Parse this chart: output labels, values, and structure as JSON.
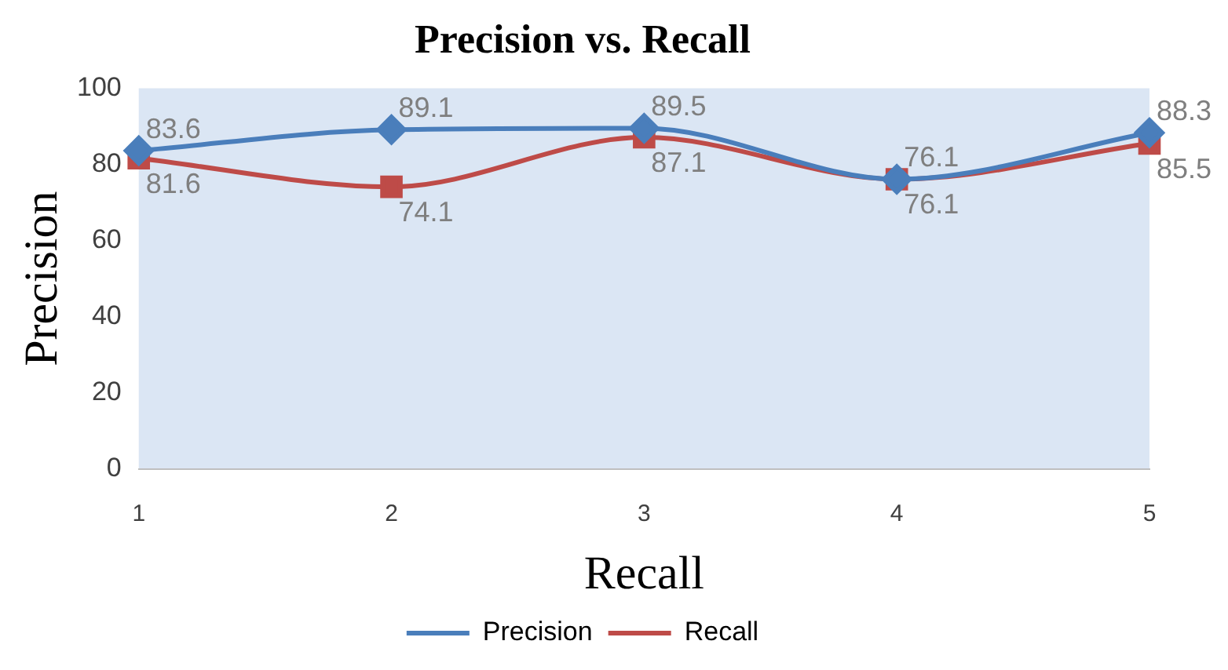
{
  "chart_data": {
    "type": "line",
    "title": "Precision vs. Recall",
    "xlabel": "Recall",
    "ylabel": "Precision",
    "categories": [
      "1",
      "2",
      "3",
      "4",
      "5"
    ],
    "series": [
      {
        "name": "Precision",
        "color": "#4a7ebb",
        "values": [
          83.6,
          89.1,
          89.5,
          76.1,
          88.3
        ],
        "marker": "diamond"
      },
      {
        "name": "Recall",
        "color": "#be4b48",
        "values": [
          81.6,
          74.1,
          87.1,
          76.1,
          85.5
        ],
        "marker": "square"
      }
    ],
    "ylim": [
      0,
      100
    ],
    "yticks": [
      0,
      20,
      40,
      60,
      80,
      100
    ],
    "grid": false,
    "legend": "bottom",
    "data_labels": true
  }
}
